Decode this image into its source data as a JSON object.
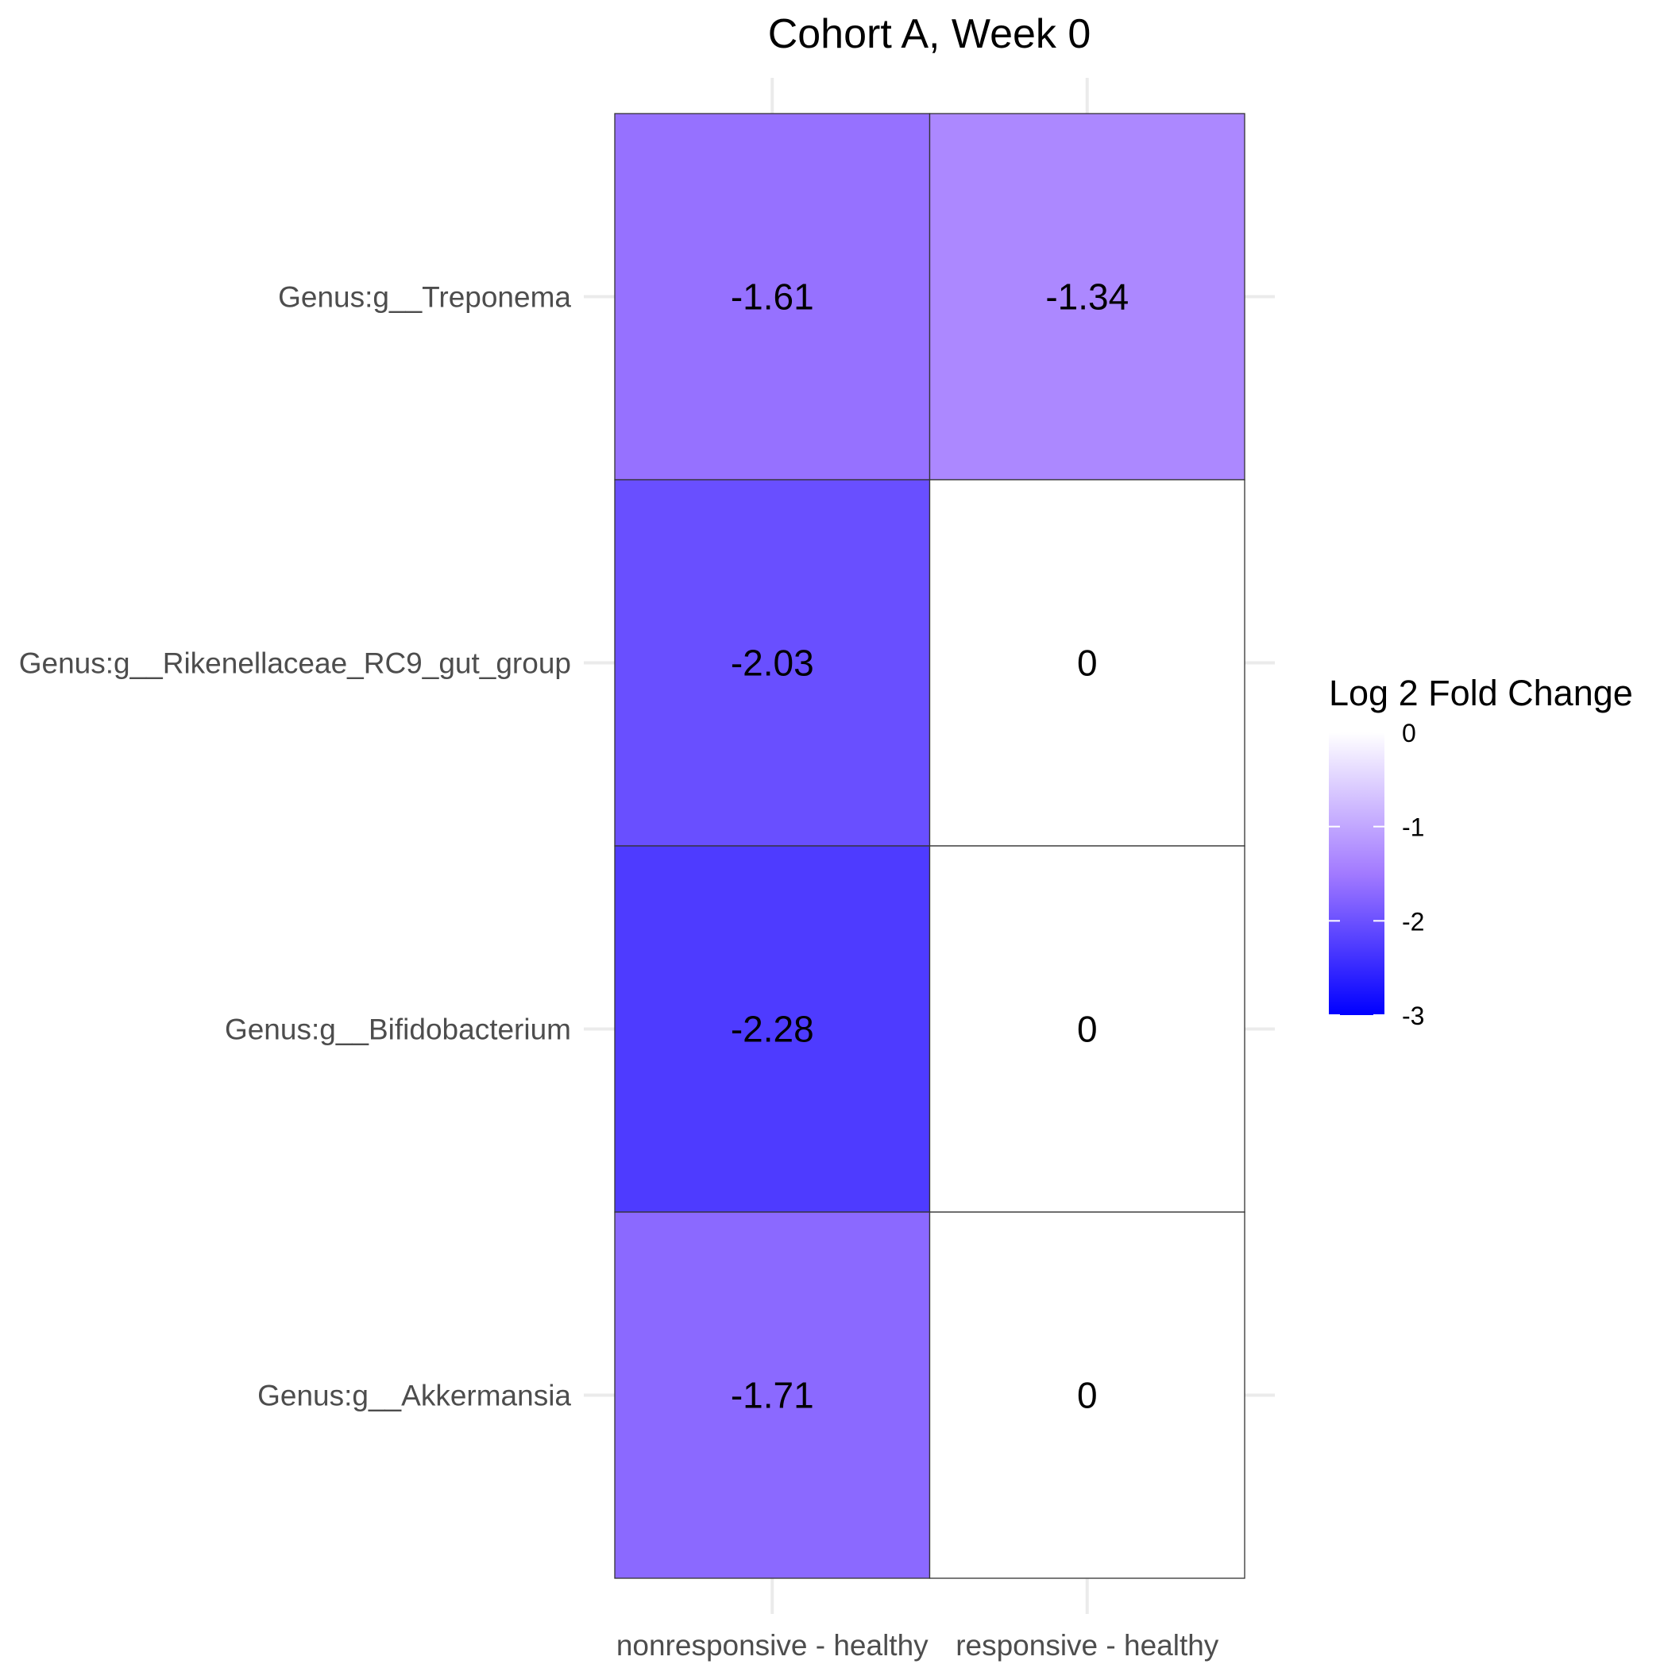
{
  "chart_data": {
    "type": "heatmap",
    "title": "Cohort A, Week 0",
    "xlabel": "",
    "ylabel": "",
    "columns": [
      "nonresponsive - healthy",
      "responsive - healthy"
    ],
    "rows": [
      "Genus:g__Treponema",
      "Genus:g__Rikenellaceae_RC9_gut_group",
      "Genus:g__Bifidobacterium",
      "Genus:g__Akkermansia"
    ],
    "values": [
      [
        -1.61,
        -1.34
      ],
      [
        -2.03,
        0
      ],
      [
        -2.28,
        0
      ],
      [
        -1.71,
        0
      ]
    ],
    "cell_labels": [
      [
        "-1.61",
        "-1.34"
      ],
      [
        "-2.03",
        "0"
      ],
      [
        "-2.28",
        "0"
      ],
      [
        "-1.71",
        "0"
      ]
    ],
    "legend": {
      "title": "Log 2 Fold Change",
      "placement": "right",
      "limits": [
        -3,
        0
      ],
      "ticks": [
        0,
        -1,
        -2,
        -3
      ],
      "tick_labels": [
        "0",
        "-1",
        "-2",
        "-3"
      ],
      "low_color": "#0000ff",
      "mid_color": "#a27aff",
      "high_color": "#ffffff"
    },
    "grid": true
  }
}
